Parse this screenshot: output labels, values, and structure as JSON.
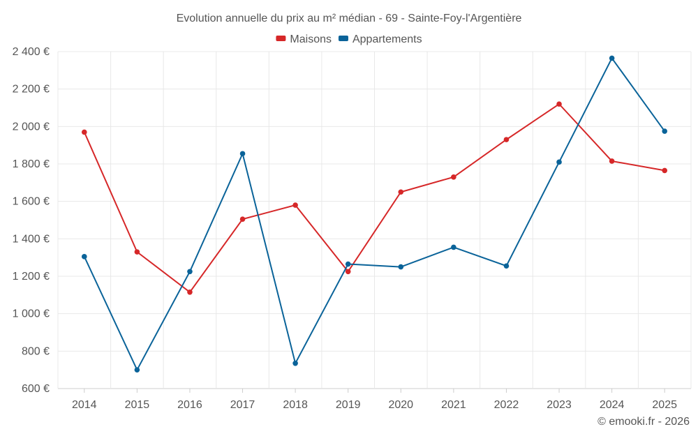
{
  "chart_data": {
    "type": "line",
    "title": "Evolution annuelle du prix au m² médian - 69 - Sainte-Foy-l'Argentière",
    "xlabel": "",
    "ylabel": "",
    "categories": [
      "2014",
      "2015",
      "2016",
      "2017",
      "2018",
      "2019",
      "2020",
      "2021",
      "2022",
      "2023",
      "2024",
      "2025"
    ],
    "ylim": [
      600,
      2400
    ],
    "yticks": [
      600,
      800,
      1000,
      1200,
      1400,
      1600,
      1800,
      2000,
      2200,
      2400
    ],
    "ytick_labels": [
      "600 €",
      "800 €",
      "1 000 €",
      "1 200 €",
      "1 400 €",
      "1 600 €",
      "1 800 €",
      "2 000 €",
      "2 200 €",
      "2 400 €"
    ],
    "grid": true,
    "legend_position": "top-center",
    "series": [
      {
        "name": "Maisons",
        "color": "#d62728",
        "values": [
          1970,
          1330,
          1115,
          1505,
          1580,
          1225,
          1650,
          1730,
          1930,
          2120,
          1815,
          1765
        ]
      },
      {
        "name": "Appartements",
        "color": "#0a6399",
        "values": [
          1305,
          700,
          1225,
          1855,
          735,
          1265,
          1250,
          1355,
          1255,
          1810,
          2365,
          1975
        ]
      }
    ]
  },
  "credit": "© emooki.fr - 2026"
}
